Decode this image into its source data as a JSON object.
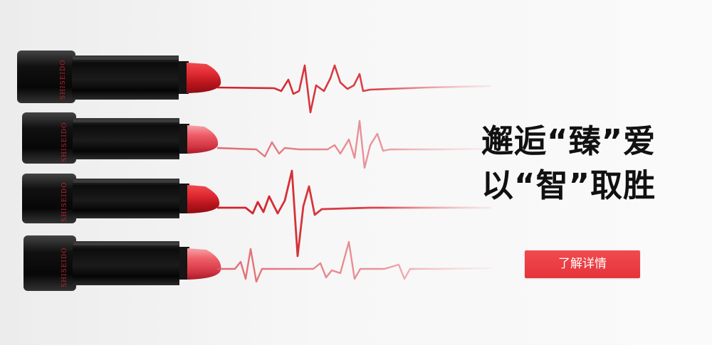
{
  "banner": {
    "headline_line1": "邂逅“臻”爱",
    "headline_line2": "以“智”取胜",
    "cta_label": "了解详情",
    "brand_mark": "SHISEIDO"
  },
  "colors": {
    "accent_red": "#e53a40",
    "lipstick_red": "#d8232b",
    "tube_black": "#121212"
  }
}
